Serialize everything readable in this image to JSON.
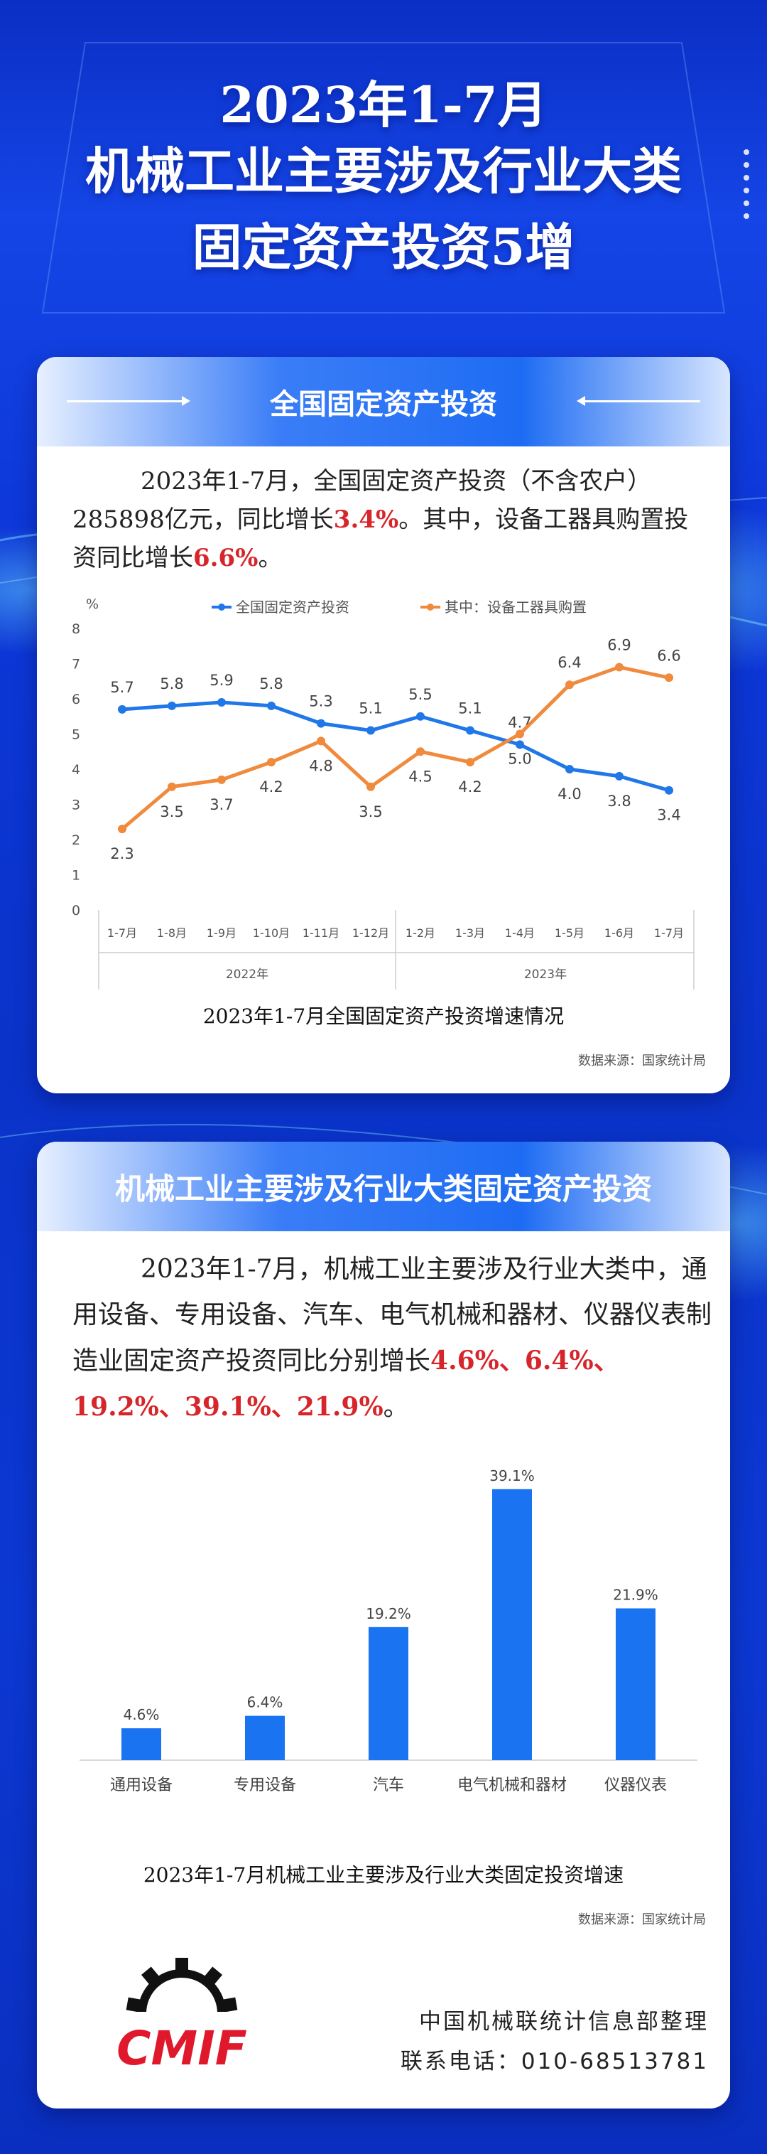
{
  "header": {
    "title_line1": "2023年1-7月",
    "title_line2": "机械工业主要涉及行业大类",
    "title_line3": "固定资产投资5增"
  },
  "section1": {
    "heading": "全国固定资产投资",
    "text_a": "2023年1-7月，全国固定资产投资（不含农户）285898亿元，同比增长",
    "value_a": "3.4%",
    "text_b": "。其中，设备工器具购置投资同比增长",
    "value_b": "6.6%",
    "text_c": "。",
    "caption": "2023年1-7月全国固定资产投资增速情况",
    "source": "数据来源：国家统计局"
  },
  "section2": {
    "heading": "机械工业主要涉及行业大类固定资产投资",
    "text_a": "2023年1-7月，机械工业主要涉及行业大类中，通用设备、专用设备、汽车、电气机械和器材、仪器仪表制造业固定资产投资同比分别增长",
    "value_a": "4.6%、6.4%、19.2%、39.1%、21.9%",
    "text_b": "。",
    "caption": "2023年1-7月机械工业主要涉及行业大类固定投资增速",
    "source": "数据来源：国家统计局"
  },
  "footer": {
    "org": "中国机械联统计信息部整理",
    "phone": "联系电话：010-68513781",
    "logo_text": "CMIF"
  },
  "colors": {
    "series_blue": "#1f77e8",
    "series_orange": "#f08a3c",
    "bar_blue": "#1a73f0",
    "highlight_red": "#d7262b"
  },
  "chart_data": [
    {
      "type": "line",
      "yunit": "%",
      "categories": [
        "1-7月",
        "1-8月",
        "1-9月",
        "1-10月",
        "1-11月",
        "1-12月",
        "1-2月",
        "1-3月",
        "1-4月",
        "1-5月",
        "1-6月",
        "1-7月"
      ],
      "groups": [
        {
          "label": "2022年",
          "from": 0,
          "to": 5
        },
        {
          "label": "2023年",
          "from": 6,
          "to": 11
        }
      ],
      "ylim": [
        0,
        8
      ],
      "yticks": [
        0,
        1,
        2,
        3,
        4,
        5,
        6,
        7,
        8
      ],
      "legend_position": "top",
      "series": [
        {
          "name": "全国固定资产投资",
          "color": "#1f77e8",
          "values": [
            5.7,
            5.8,
            5.9,
            5.8,
            5.3,
            5.1,
            5.5,
            5.1,
            4.7,
            4.0,
            3.8,
            3.4
          ]
        },
        {
          "name": "其中：设备工器具购置",
          "color": "#f08a3c",
          "values": [
            2.3,
            3.5,
            3.7,
            4.2,
            4.8,
            3.5,
            4.5,
            4.2,
            5.0,
            6.4,
            6.9,
            6.6
          ]
        }
      ]
    },
    {
      "type": "bar",
      "categories": [
        "通用设备",
        "专用设备",
        "汽车",
        "电气机械和器材",
        "仪器仪表"
      ],
      "values": [
        4.6,
        6.4,
        19.2,
        39.1,
        21.9
      ],
      "labels": [
        "4.6%",
        "6.4%",
        "19.2%",
        "39.1%",
        "21.9%"
      ],
      "ylim": [
        0,
        40
      ]
    }
  ]
}
